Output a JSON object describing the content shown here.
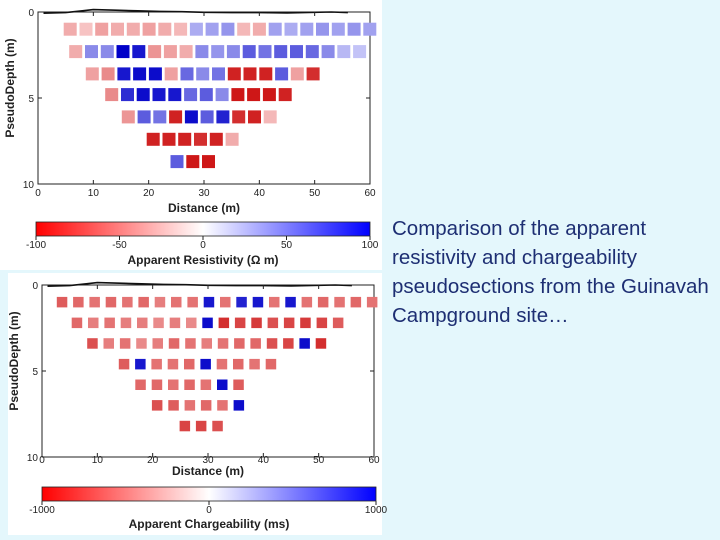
{
  "caption": "Comparison of the apparent resistivity and chargeability pseudosections from the Guinavah Campground site…",
  "chart_data": [
    {
      "type": "heatmap",
      "ylabel": "PseudoDepth (m)",
      "xlabel": "Distance (m)",
      "xticks": [
        "0",
        "10",
        "20",
        "30",
        "40",
        "50",
        "60"
      ],
      "yticks": [
        "0",
        "5",
        "10"
      ],
      "xlim": [
        0,
        60
      ],
      "ylim": [
        0,
        10
      ],
      "colorbar": {
        "label": "Apparent Resistivity (Ω m)",
        "ticks": [
          "-100",
          "-50",
          "0",
          "50",
          "100"
        ],
        "min": -100,
        "max": 100,
        "low_color": "#ff0000",
        "mid_color": "#ffffff",
        "high_color": "#0000ff"
      },
      "surface": [
        [
          1.0,
          -0.2
        ],
        [
          5,
          -0.1
        ],
        [
          8,
          0.2
        ],
        [
          10,
          0.4
        ],
        [
          14,
          0.3
        ],
        [
          18,
          0.2
        ],
        [
          22,
          0.1
        ],
        [
          26,
          0.05
        ],
        [
          30,
          -0.05
        ],
        [
          35,
          -0.1
        ],
        [
          40,
          -0.1
        ],
        [
          45,
          -0.15
        ],
        [
          50,
          -0.05
        ],
        [
          53,
          0.0
        ],
        [
          56,
          -0.1
        ]
      ],
      "rows": [
        {
          "depth": 1.0,
          "x_start": 6.0,
          "x_step": 2.85,
          "values": [
            -25,
            -15,
            -30,
            -25,
            -25,
            -30,
            -25,
            -20,
            25,
            30,
            35,
            -20,
            -25,
            30,
            25,
            30,
            35,
            30,
            35,
            30
          ]
        },
        {
          "depth": 2.3,
          "x_start": 7.0,
          "x_step": 2.85,
          "values": [
            -25,
            40,
            40,
            100,
            90,
            -35,
            -30,
            -25,
            40,
            35,
            40,
            60,
            50,
            60,
            60,
            55,
            40,
            20,
            15
          ]
        },
        {
          "depth": 3.6,
          "x_start": 10.0,
          "x_step": 2.85,
          "values": [
            -30,
            -40,
            90,
            95,
            95,
            -30,
            55,
            40,
            50,
            -85,
            -85,
            -85,
            60,
            -30,
            -80
          ]
        },
        {
          "depth": 4.8,
          "x_start": 13.5,
          "x_step": 2.85,
          "values": [
            -40,
            80,
            95,
            90,
            90,
            55,
            60,
            40,
            -90,
            -90,
            -90,
            -85
          ]
        },
        {
          "depth": 6.1,
          "x_start": 16.5,
          "x_step": 2.85,
          "values": [
            -35,
            60,
            50,
            -85,
            95,
            60,
            85,
            -80,
            -85,
            -20
          ]
        },
        {
          "depth": 7.4,
          "x_start": 21.0,
          "x_step": 2.85,
          "values": [
            -85,
            -85,
            -85,
            -80,
            -85,
            -25
          ]
        },
        {
          "depth": 8.7,
          "x_start": 25.3,
          "x_step": 2.85,
          "values": [
            60,
            -90,
            -90
          ]
        }
      ]
    },
    {
      "type": "heatmap",
      "ylabel": "PseudoDepth (m)",
      "xlabel": "Distance (m)",
      "xticks": [
        "0",
        "10",
        "20",
        "30",
        "40",
        "50",
        "60"
      ],
      "yticks": [
        "0",
        "5",
        "10"
      ],
      "xlim": [
        0,
        60
      ],
      "ylim": [
        0,
        10
      ],
      "colorbar": {
        "label": "Apparent Chargeability (ms)",
        "ticks": [
          "-1000",
          "0",
          "1000"
        ],
        "min": -1000,
        "max": 1000,
        "low_color": "#ff0000",
        "mid_color": "#ffffff",
        "high_color": "#0000ff"
      },
      "surface": [
        [
          1.0,
          -0.2
        ],
        [
          5,
          -0.1
        ],
        [
          8,
          0.2
        ],
        [
          10,
          0.4
        ],
        [
          14,
          0.3
        ],
        [
          18,
          0.2
        ],
        [
          22,
          0.1
        ],
        [
          26,
          0.05
        ],
        [
          30,
          -0.05
        ],
        [
          35,
          -0.1
        ],
        [
          40,
          -0.1
        ],
        [
          45,
          -0.15
        ],
        [
          50,
          -0.05
        ],
        [
          53,
          0.0
        ],
        [
          56,
          -0.1
        ]
      ],
      "rows": [
        {
          "depth": 1.0,
          "x_start": 3.8,
          "x_step": 2.95,
          "values": [
            -600,
            -550,
            -500,
            -550,
            -500,
            -550,
            -450,
            -500,
            -500,
            900,
            -500,
            850,
            900,
            -500,
            900,
            -500,
            -550,
            -500,
            -550,
            -500
          ]
        },
        {
          "depth": 2.2,
          "x_start": 6.5,
          "x_step": 2.95,
          "values": [
            -550,
            -450,
            -500,
            -450,
            -450,
            -400,
            -450,
            -400,
            950,
            -800,
            -700,
            -750,
            -650,
            -700,
            -750,
            -700,
            -600
          ]
        },
        {
          "depth": 3.4,
          "x_start": 9.3,
          "x_step": 2.95,
          "values": [
            -650,
            -450,
            -500,
            -400,
            -450,
            -550,
            -500,
            -450,
            -500,
            -550,
            -550,
            -650,
            -700,
            950,
            -800
          ]
        },
        {
          "depth": 4.6,
          "x_start": 15.0,
          "x_step": 2.95,
          "values": [
            -600,
            900,
            -500,
            -500,
            -550,
            950,
            -500,
            -550,
            -500,
            -550
          ]
        },
        {
          "depth": 5.8,
          "x_start": 18.0,
          "x_step": 2.95,
          "values": [
            -550,
            -550,
            -500,
            -550,
            -500,
            950,
            -600
          ]
        },
        {
          "depth": 7.0,
          "x_start": 21.0,
          "x_step": 2.95,
          "values": [
            -650,
            -600,
            -500,
            -550,
            -500,
            950
          ]
        },
        {
          "depth": 8.2,
          "x_start": 26.0,
          "x_step": 2.95,
          "values": [
            -700,
            -700,
            -650
          ]
        }
      ]
    }
  ]
}
